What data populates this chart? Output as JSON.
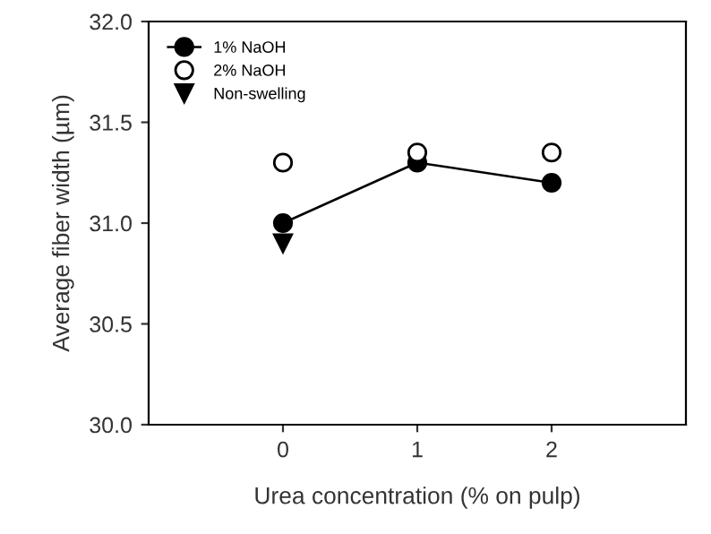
{
  "chart_data": {
    "type": "scatter",
    "xlabel": "Urea concentration (% on pulp)",
    "ylabel": "Average fiber width (µm)",
    "x": [
      0,
      1,
      2
    ],
    "xlim": [
      -1,
      3
    ],
    "xticks": [
      0,
      1,
      2
    ],
    "ylim": [
      30.0,
      32.0
    ],
    "yticks": [
      {
        "value": 30.0,
        "label": "30.0"
      },
      {
        "value": 30.5,
        "label": "30.5"
      },
      {
        "value": 31.0,
        "label": "31.0"
      },
      {
        "value": 31.5,
        "label": "31.5"
      },
      {
        "value": 32.0,
        "label": "32.0"
      }
    ],
    "series": [
      {
        "name": "1% NaOH",
        "type": "line",
        "color": "#000000",
        "marker": "circle",
        "values": [
          31.0,
          31.3,
          31.2
        ]
      },
      {
        "name": "2% NaOH",
        "color": "#ffffff",
        "marker": "circle",
        "values": [
          31.3,
          31.35,
          31.35
        ]
      },
      {
        "name": "Non-swelling",
        "color": "#000000",
        "marker": "triangle",
        "values": [
          30.9,
          null,
          null
        ]
      }
    ],
    "legend": "top left",
    "grid": false
  }
}
